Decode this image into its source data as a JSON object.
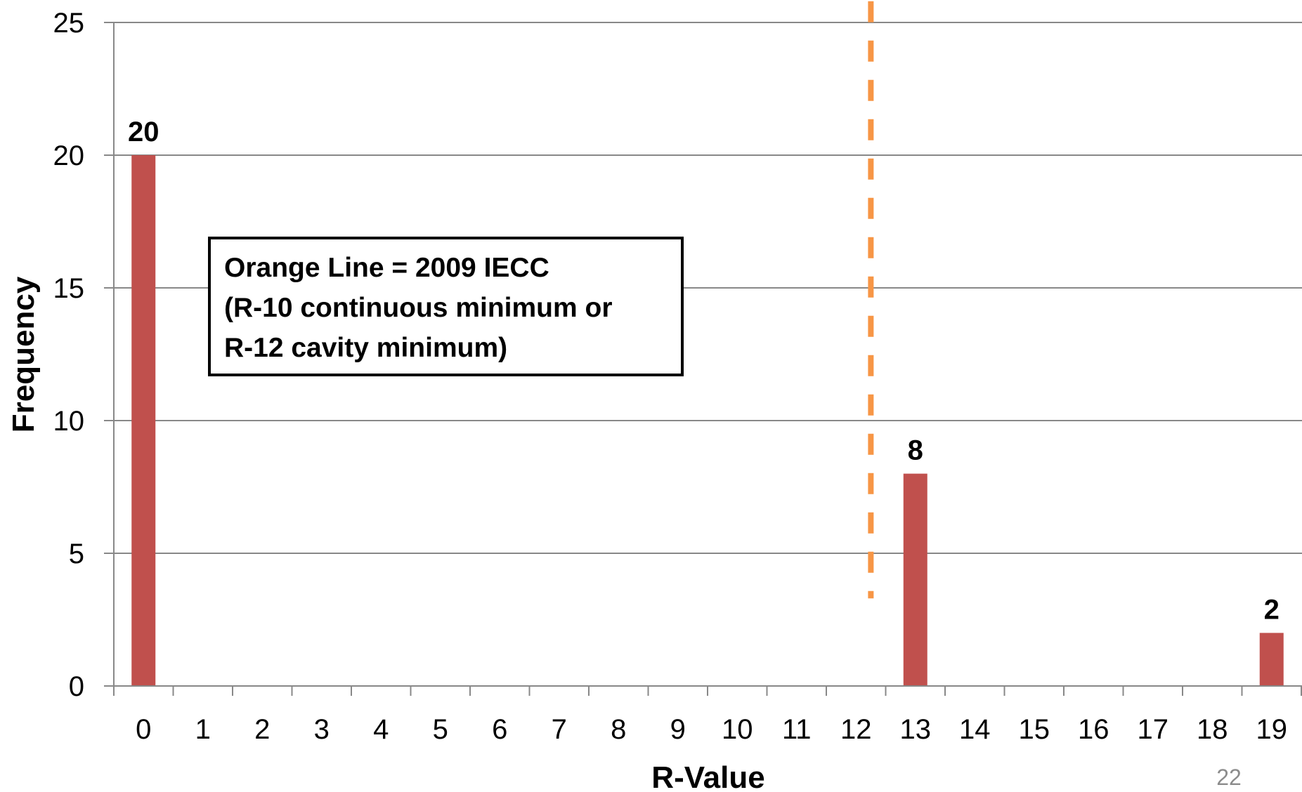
{
  "chart_data": {
    "type": "bar",
    "categories": [
      "0",
      "1",
      "2",
      "3",
      "4",
      "5",
      "6",
      "7",
      "8",
      "9",
      "10",
      "11",
      "12",
      "13",
      "14",
      "15",
      "16",
      "17",
      "18",
      "19"
    ],
    "values": [
      20,
      0,
      0,
      0,
      0,
      0,
      0,
      0,
      0,
      0,
      0,
      0,
      0,
      8,
      0,
      0,
      0,
      0,
      0,
      2
    ],
    "data_labels": [
      {
        "category": "0",
        "value": 20,
        "text": "20"
      },
      {
        "category": "13",
        "value": 8,
        "text": "8"
      },
      {
        "category": "19",
        "value": 2,
        "text": "2"
      }
    ],
    "title": "",
    "xlabel": "R-Value",
    "ylabel": "Frequency",
    "ylim": [
      0,
      25
    ],
    "yticks": [
      "0",
      "5",
      "10",
      "15",
      "20",
      "25"
    ],
    "grid": true,
    "bar_color": "#c0504d",
    "reference_line": {
      "x": 12.25,
      "y_from": 3.3,
      "y_to": 25.8,
      "color": "#f79646",
      "style": "dashed"
    },
    "annotation": {
      "lines": [
        "Orange Line = 2009 IECC",
        "(R-10 continuous minimum or",
        "R-12 cavity minimum)"
      ]
    }
  },
  "page_number": "22"
}
